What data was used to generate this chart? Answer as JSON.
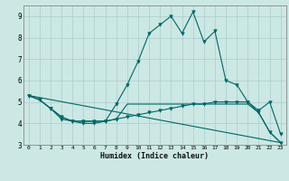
{
  "background_color": "#cce8e4",
  "grid_color": "#aacccc",
  "line_color": "#006666",
  "xlabel": "Humidex (Indice chaleur)",
  "xlim": [
    -0.5,
    23.5
  ],
  "ylim": [
    3,
    9.5
  ],
  "yticks": [
    3,
    4,
    5,
    6,
    7,
    8,
    9
  ],
  "xticks": [
    0,
    1,
    2,
    3,
    4,
    5,
    6,
    7,
    8,
    9,
    10,
    11,
    12,
    13,
    14,
    15,
    16,
    17,
    18,
    19,
    20,
    21,
    22,
    23
  ],
  "series": {
    "line1_x": [
      0,
      1,
      2,
      3,
      4,
      5,
      6,
      7,
      8,
      9,
      10,
      11,
      12,
      13,
      14,
      15,
      16,
      17,
      18,
      19,
      20,
      21,
      22,
      23
    ],
    "line1_y": [
      5.3,
      5.1,
      4.7,
      4.2,
      4.1,
      4.0,
      4.0,
      4.1,
      4.9,
      5.8,
      6.9,
      8.2,
      8.6,
      9.0,
      8.2,
      9.2,
      7.8,
      8.3,
      6.0,
      5.8,
      5.0,
      4.6,
      5.0,
      3.5
    ],
    "line2_x": [
      0,
      1,
      2,
      3,
      4,
      5,
      6,
      7,
      8,
      9,
      10,
      11,
      12,
      13,
      14,
      15,
      16,
      17,
      18,
      19,
      20,
      21,
      22,
      23
    ],
    "line2_y": [
      5.3,
      5.1,
      4.7,
      4.3,
      4.1,
      4.1,
      4.1,
      4.1,
      4.2,
      4.3,
      4.4,
      4.5,
      4.6,
      4.7,
      4.8,
      4.9,
      4.9,
      5.0,
      5.0,
      5.0,
      5.0,
      4.5,
      3.6,
      3.1
    ],
    "line3_x": [
      0,
      1,
      2,
      3,
      4,
      5,
      6,
      7,
      8,
      9,
      10,
      11,
      12,
      13,
      14,
      15,
      16,
      17,
      18,
      19,
      20,
      21,
      22,
      23
    ],
    "line3_y": [
      5.3,
      5.1,
      4.7,
      4.3,
      4.1,
      4.1,
      4.1,
      4.1,
      4.2,
      4.9,
      4.9,
      4.9,
      4.9,
      4.9,
      4.9,
      4.9,
      4.9,
      4.9,
      4.9,
      4.9,
      4.9,
      4.5,
      3.6,
      3.1
    ],
    "line4_x": [
      0,
      23
    ],
    "line4_y": [
      5.3,
      3.1
    ]
  }
}
